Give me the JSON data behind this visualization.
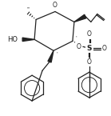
{
  "bg": "#ffffff",
  "lc": "#222222",
  "lw": 0.9,
  "figsize": [
    1.39,
    1.45
  ],
  "dpi": 100,
  "xlim": [
    0,
    139
  ],
  "ylim": [
    0,
    145
  ]
}
